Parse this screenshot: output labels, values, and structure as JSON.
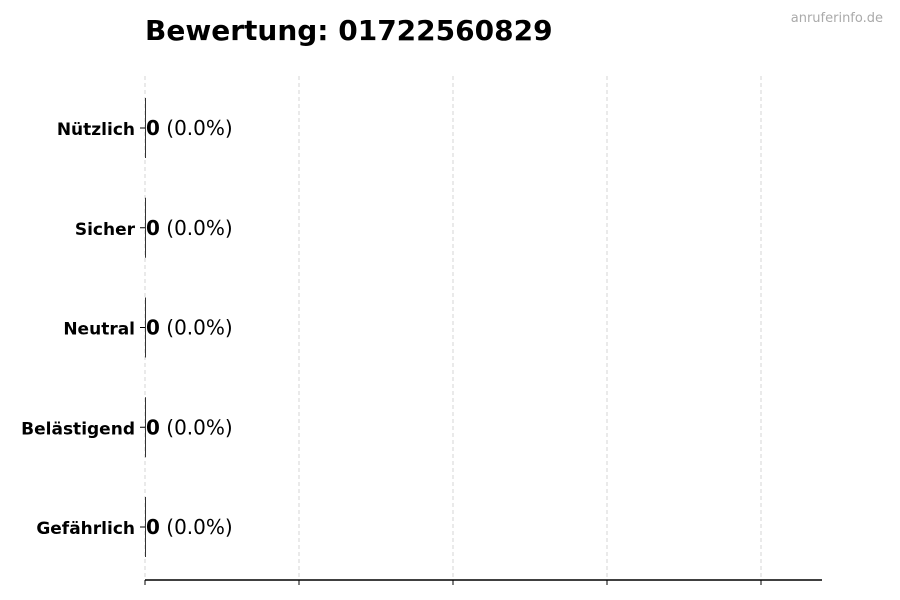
{
  "watermark": "anruferinfo.de",
  "chart_data": {
    "type": "bar",
    "orientation": "horizontal",
    "title": "Bewertung: 01722560829",
    "categories": [
      "Nützlich",
      "Sicher",
      "Neutral",
      "Belästigend",
      "Gefährlich"
    ],
    "values": [
      0,
      0,
      0,
      0,
      0
    ],
    "labels": [
      "(0.0%)",
      "(0.0%)",
      "(0.0%)",
      "(0.0%)",
      "(0.0%)"
    ],
    "xlabel": "",
    "ylabel": "",
    "grid": "x dashed",
    "legend": "none",
    "bar_color": "#333333"
  }
}
